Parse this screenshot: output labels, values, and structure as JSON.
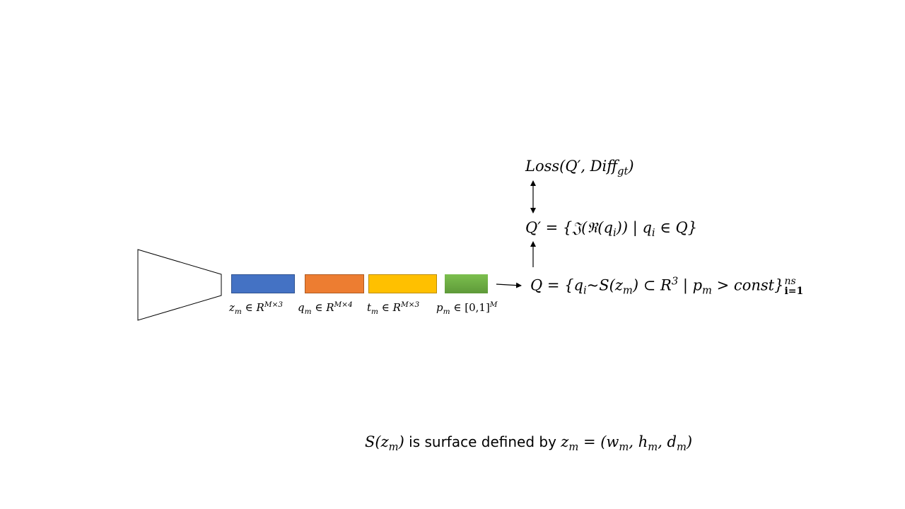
{
  "colors": {
    "z_block": "#4472C4",
    "q_block": "#ED7D31",
    "t_block": "#FFC000",
    "p_block": "#70AD47",
    "p_block_gradient_top": "#7CBF4E",
    "p_block_gradient_bottom": "#5E9A39",
    "outline": "#000000"
  },
  "blocks": [
    {
      "id": "z",
      "var": "z",
      "sub": "m",
      "rel": "∈ ",
      "set": "R",
      "exp": "M×3"
    },
    {
      "id": "q",
      "var": "q",
      "sub": "m",
      "rel": "∈ ",
      "set": "R",
      "exp": "M×4"
    },
    {
      "id": "t",
      "var": "t",
      "sub": "m",
      "rel": "∈ ",
      "set": "R",
      "exp": "M×3"
    },
    {
      "id": "p",
      "var": "p",
      "sub": "m",
      "rel": "∈ ",
      "set": "[0,1]",
      "exp": "M"
    }
  ],
  "equations": {
    "loss": {
      "head": "Loss(Q′, Diff",
      "sub": "gt",
      "tail": ")"
    },
    "qprime": {
      "head": "Q′ = {𝔍(ℜ(q",
      "sub1": "i",
      "mid": ")) | q",
      "sub2": "i",
      "tail": " ∈ Q}"
    },
    "q": {
      "head": "Q = {q",
      "sub1": "i",
      "mid1": "~S(z",
      "sub2": "m",
      "mid2": ") ⊂ R",
      "sup1": "3",
      "mid3": " | p",
      "sub3": "m",
      "mid4": " > const}",
      "sup2": "ns",
      "sub4": "i=1"
    }
  },
  "note": {
    "s_head": "S(z",
    "s_sub": "m",
    "s_tail": ")",
    "text": " is surface defined by ",
    "z_head": "z",
    "z_sub": "m",
    "z_eq": " = (w",
    "w_sub": "m",
    "sep1": ", h",
    "h_sub": "m",
    "sep2": ", d",
    "d_sub": "m",
    "close": ")"
  }
}
